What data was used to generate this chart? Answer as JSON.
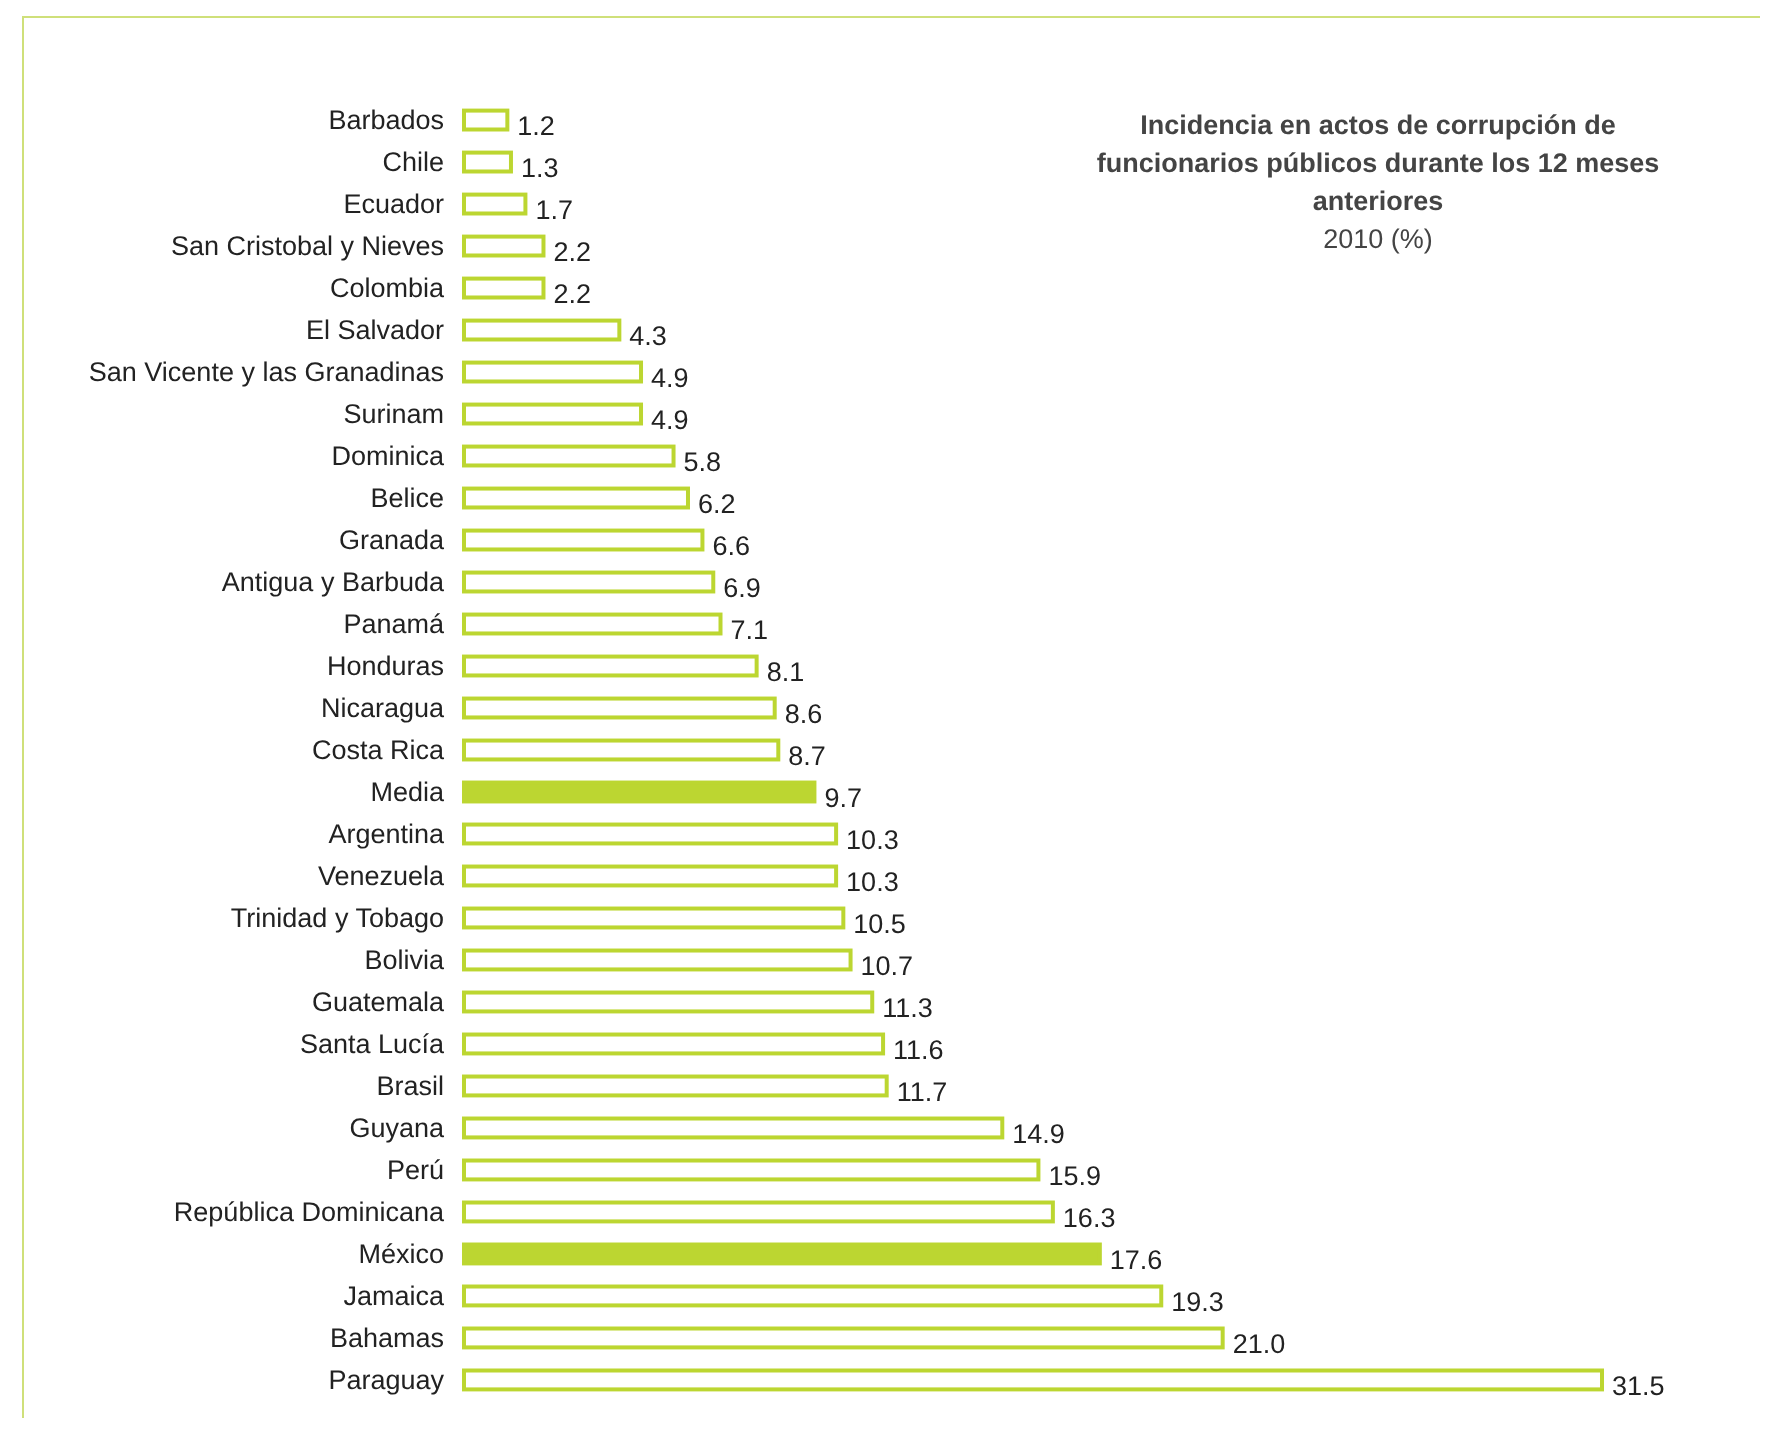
{
  "chart_data": {
    "type": "bar",
    "orientation": "horizontal",
    "title": "Incidencia en actos de corrupción de funcionarios públicos durante los 12 meses anteriores",
    "subtitle": "2010 (%)",
    "categories": [
      "Barbados",
      "Chile",
      "Ecuador",
      "San Cristobal y Nieves",
      "Colombia",
      "El Salvador",
      "San Vicente y las Granadinas",
      "Surinam",
      "Dominica",
      "Belice",
      "Granada",
      "Antigua y Barbuda",
      "Panamá",
      "Honduras",
      "Nicaragua",
      "Costa Rica",
      "Media",
      "Argentina",
      "Venezuela",
      "Trinidad y Tobago",
      "Bolivia",
      "Guatemala",
      "Santa Lucía",
      "Brasil",
      "Guyana",
      "Perú",
      "República Dominicana",
      "México",
      "Jamaica",
      "Bahamas",
      "Paraguay"
    ],
    "values": [
      1.2,
      1.3,
      1.7,
      2.2,
      2.2,
      4.3,
      4.9,
      4.9,
      5.8,
      6.2,
      6.6,
      6.9,
      7.1,
      8.1,
      8.6,
      8.7,
      9.7,
      10.3,
      10.3,
      10.5,
      10.7,
      11.3,
      11.6,
      11.7,
      14.9,
      15.9,
      16.3,
      17.6,
      19.3,
      21.0,
      31.5
    ],
    "value_labels": [
      "1.2",
      "1.3",
      "1.7",
      "2.2",
      "2.2",
      "4.3",
      "4.9",
      "4.9",
      "5.8",
      "6.2",
      "6.6",
      "6.9",
      "7.1",
      "8.1",
      "8.6",
      "8.7",
      "9.7",
      "10.3",
      "10.3",
      "10.5",
      "10.7",
      "11.3",
      "11.6",
      "11.7",
      "14.9",
      "15.9",
      "16.3",
      "17.6",
      "19.3",
      "21.0",
      "31.5"
    ],
    "color": "#bcd631",
    "colors": [
      "#ffffff",
      "#ffffff",
      "#ffffff",
      "#ffffff",
      "#ffffff",
      "#ffffff",
      "#ffffff",
      "#ffffff",
      "#ffffff",
      "#ffffff",
      "#ffffff",
      "#ffffff",
      "#ffffff",
      "#ffffff",
      "#ffffff",
      "#ffffff",
      "#bcd631",
      "#ffffff",
      "#ffffff",
      "#ffffff",
      "#ffffff",
      "#ffffff",
      "#ffffff",
      "#ffffff",
      "#ffffff",
      "#ffffff",
      "#ffffff",
      "#bcd631",
      "#ffffff",
      "#ffffff",
      "#ffffff"
    ],
    "relative": false
  }
}
